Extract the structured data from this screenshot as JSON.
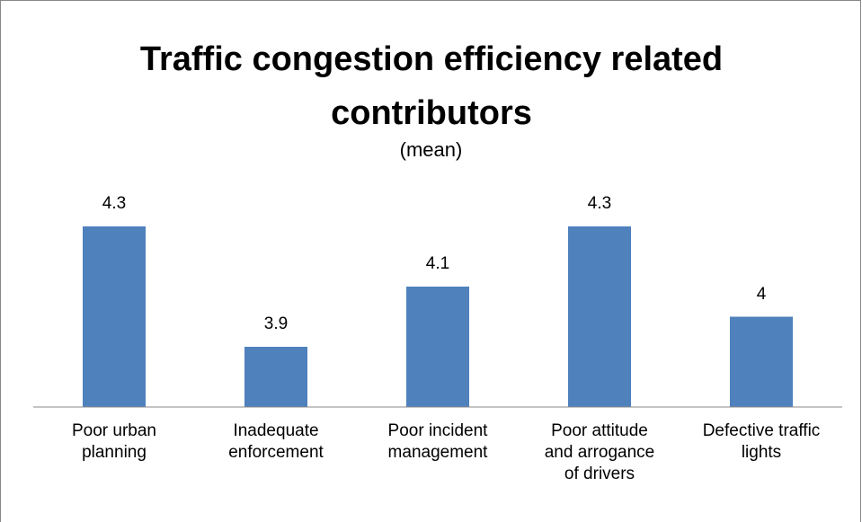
{
  "chart_data": {
    "type": "bar",
    "title": "Traffic congestion efficiency related contributors",
    "subtitle": "(mean)",
    "categories": [
      "Poor urban\nplanning",
      "Inadequate\nenforcement",
      "Poor incident\nmanagement",
      "Poor attitude\nand arrogance\nof drivers",
      "Defective traffic\nlights"
    ],
    "values": [
      4.3,
      3.9,
      4.1,
      4.3,
      4
    ],
    "color": "#4f81bd",
    "ylim": [
      3.7,
      4.4
    ]
  }
}
